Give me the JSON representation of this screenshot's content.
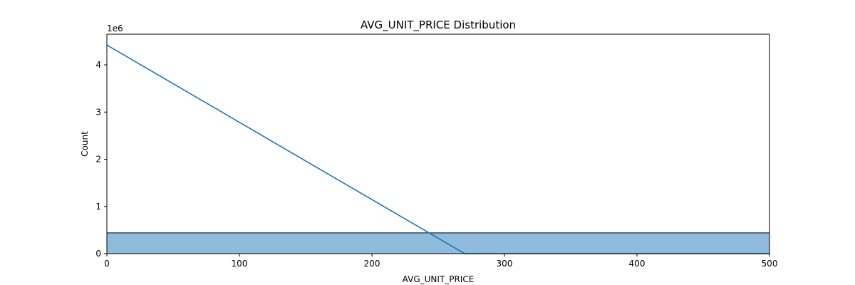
{
  "chart_data": {
    "type": "histogram",
    "title": "AVG_UNIT_PRICE Distribution",
    "xlabel": "AVG_UNIT_PRICE",
    "ylabel": "Count",
    "y_offset_label": "1e6",
    "xlim": [
      0,
      500
    ],
    "ylim": [
      0,
      4650000
    ],
    "x_ticks": [
      0,
      100,
      200,
      300,
      400,
      500
    ],
    "x_tick_labels": [
      "0",
      "100",
      "200",
      "300",
      "400",
      "500"
    ],
    "y_ticks": [
      0,
      1000000,
      2000000,
      3000000,
      4000000
    ],
    "y_tick_labels": [
      "0",
      "1",
      "2",
      "3",
      "4"
    ],
    "grid": false,
    "bars": [
      {
        "x0": 0,
        "x1": 500,
        "count": 440000
      }
    ],
    "kde_line": {
      "x": [
        0,
        270,
        500
      ],
      "y": [
        4420000,
        0,
        0
      ]
    },
    "colors": {
      "bar_fill": "#8fbbdc",
      "bar_edge": "#000000",
      "line": "#1f77b4"
    }
  }
}
